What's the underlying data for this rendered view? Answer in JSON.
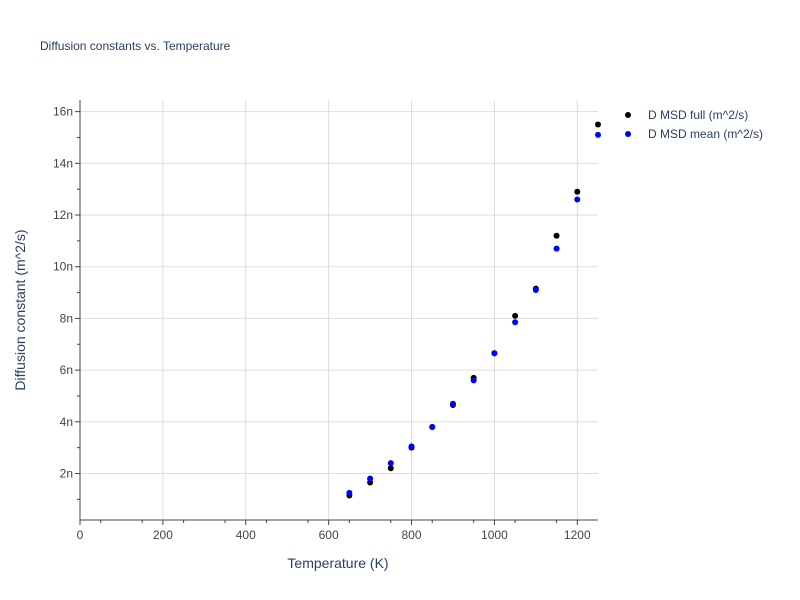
{
  "chart_data": {
    "type": "scatter",
    "title": "Diffusion constants vs. Temperature",
    "xlabel": "Temperature (K)",
    "ylabel": "Diffusion constant (m^2/s)",
    "xlim": [
      0,
      1250
    ],
    "ylim": [
      0.2,
      16.45
    ],
    "x_ticks": [
      0,
      200,
      400,
      600,
      800,
      1000,
      1200
    ],
    "x_tick_labels": [
      "0",
      "200",
      "400",
      "600",
      "800",
      "1000",
      "1200"
    ],
    "y_ticks": [
      2,
      4,
      6,
      8,
      10,
      12,
      14,
      16
    ],
    "y_tick_labels": [
      "2n",
      "4n",
      "6n",
      "8n",
      "10n",
      "12n",
      "14n",
      "16n"
    ],
    "grid": true,
    "legend_position": "top-right",
    "series": [
      {
        "name": "D MSD full (m^2/s)",
        "color": "#000000",
        "x": [
          650,
          700,
          750,
          800,
          850,
          900,
          950,
          1000,
          1050,
          1100,
          1150,
          1200,
          1250
        ],
        "y": [
          1.15,
          1.65,
          2.2,
          3.0,
          3.8,
          4.65,
          5.7,
          6.65,
          8.1,
          9.15,
          11.2,
          12.9,
          15.5
        ]
      },
      {
        "name": "D MSD mean (m^2/s)",
        "color": "#0000ff",
        "x": [
          650,
          700,
          750,
          800,
          850,
          900,
          950,
          1000,
          1050,
          1100,
          1150,
          1200,
          1250
        ],
        "y": [
          1.25,
          1.8,
          2.4,
          3.05,
          3.8,
          4.7,
          5.6,
          6.65,
          7.85,
          9.1,
          10.7,
          12.6,
          15.1
        ]
      }
    ]
  }
}
